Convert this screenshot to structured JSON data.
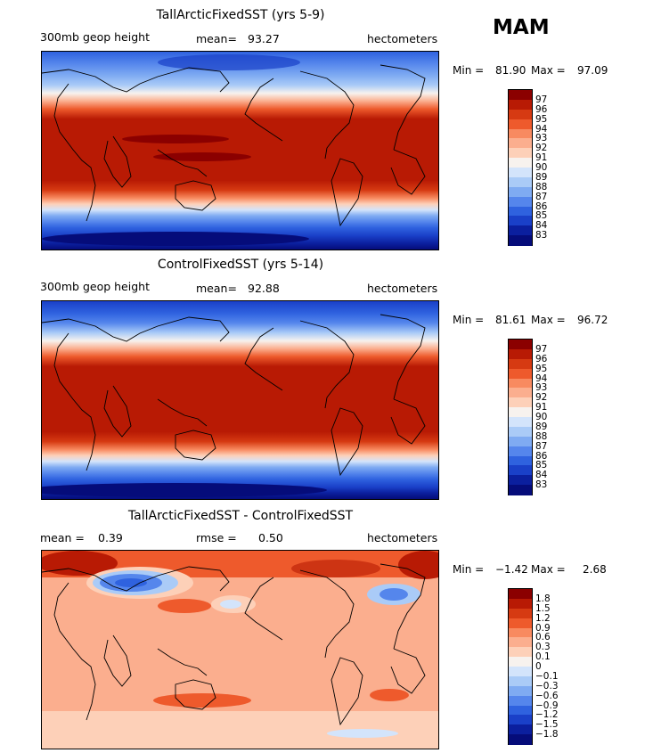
{
  "season": "MAM",
  "panels": [
    {
      "title": "TallArcticFixedSST (yrs 5-9)",
      "left_label": "300mb geop height",
      "mean_label": "mean=",
      "mean_value": "93.27",
      "units": "hectometers",
      "min_label": "Min =",
      "min_value": "81.90",
      "max_label": "Max =",
      "max_value": "97.09",
      "colorbar": {
        "labels": [
          "97",
          "96",
          "95",
          "94",
          "93",
          "92",
          "91",
          "90",
          "89",
          "88",
          "87",
          "86",
          "85",
          "84",
          "83"
        ],
        "colors": [
          "#8b0000",
          "#b81a04",
          "#d63a12",
          "#ee5a2c",
          "#f88a60",
          "#fbae8e",
          "#fdd0b8",
          "#f7f2ee",
          "#d3e4fb",
          "#aacbf7",
          "#7fabf2",
          "#5586ec",
          "#2f62df",
          "#1a40c8",
          "#0b1f9e",
          "#050c7a"
        ]
      }
    },
    {
      "title": "ControlFixedSST (yrs 5-14)",
      "left_label": "300mb geop height",
      "mean_label": "mean=",
      "mean_value": "92.88",
      "units": "hectometers",
      "min_label": "Min =",
      "min_value": "81.61",
      "max_label": "Max =",
      "max_value": "96.72",
      "colorbar": {
        "labels": [
          "97",
          "96",
          "95",
          "94",
          "93",
          "92",
          "91",
          "90",
          "89",
          "88",
          "87",
          "86",
          "85",
          "84",
          "83"
        ],
        "colors": [
          "#8b0000",
          "#b81a04",
          "#d63a12",
          "#ee5a2c",
          "#f88a60",
          "#fbae8e",
          "#fdd0b8",
          "#f7f2ee",
          "#d3e4fb",
          "#aacbf7",
          "#7fabf2",
          "#5586ec",
          "#2f62df",
          "#1a40c8",
          "#0b1f9e",
          "#050c7a"
        ]
      }
    },
    {
      "title": "TallArcticFixedSST - ControlFixedSST",
      "left_label": "mean =",
      "left_value": "0.39",
      "mean_label": "rmse =",
      "mean_value": "0.50",
      "units": "hectometers",
      "min_label": "Min =",
      "min_value": "−1.42",
      "max_label": "Max =",
      "max_value": "2.68",
      "colorbar": {
        "labels": [
          "1.8",
          "1.5",
          "1.2",
          "0.9",
          "0.6",
          "0.3",
          "0.1",
          "0",
          "−0.1",
          "−0.3",
          "−0.6",
          "−0.9",
          "−1.2",
          "−1.5",
          "−1.8"
        ],
        "colors": [
          "#8b0000",
          "#b81a04",
          "#d63a12",
          "#ee5a2c",
          "#f88a60",
          "#fbae8e",
          "#fdd0b8",
          "#f7f2ee",
          "#d3e4fb",
          "#aacbf7",
          "#7fabf2",
          "#5586ec",
          "#2f62df",
          "#1a40c8",
          "#0b1f9e",
          "#050c7a"
        ]
      }
    }
  ]
}
